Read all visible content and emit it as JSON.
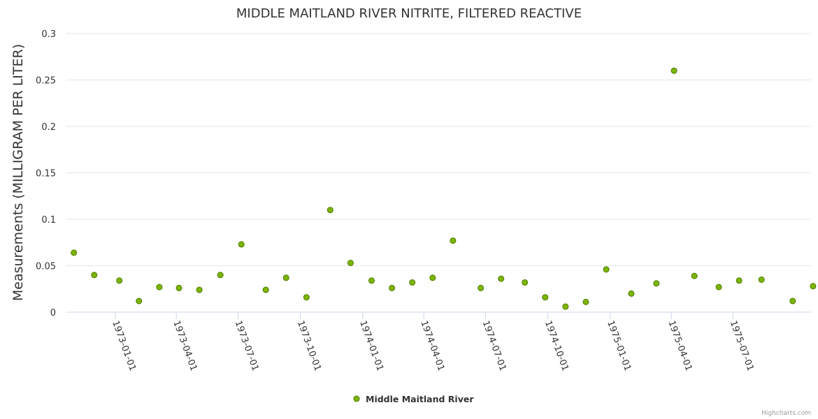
{
  "chart_data": {
    "type": "scatter",
    "title": "MIDDLE MAITLAND RIVER NITRITE, FILTERED REACTIVE",
    "ylabel": "Measurements (MILLIGRAM PER LITER)",
    "xlabel": "",
    "ylim": [
      0,
      0.3
    ],
    "yticks": [
      "0",
      "0.05",
      "0.1",
      "0.15",
      "0.2",
      "0.25",
      "0.3"
    ],
    "xticks": [
      "1973-01-01",
      "1973-04-01",
      "1973-07-01",
      "1973-10-01",
      "1974-01-01",
      "1974-04-01",
      "1974-07-01",
      "1974-10-01",
      "1975-01-01",
      "1975-04-01",
      "1975-07-01"
    ],
    "xlim": [
      "1972-10-21",
      "1975-10-24"
    ],
    "grid": "horizontal",
    "legend_position": "bottom-center",
    "series": [
      {
        "name": "Middle Maitland River",
        "color": "#7cb500",
        "points": [
          {
            "x": "1972-11-01",
            "y": 0.064
          },
          {
            "x": "1972-12-01",
            "y": 0.04
          },
          {
            "x": "1973-01-07",
            "y": 0.034
          },
          {
            "x": "1973-02-05",
            "y": 0.012
          },
          {
            "x": "1973-03-07",
            "y": 0.027
          },
          {
            "x": "1973-04-05",
            "y": 0.026
          },
          {
            "x": "1973-05-05",
            "y": 0.024
          },
          {
            "x": "1973-06-05",
            "y": 0.04
          },
          {
            "x": "1973-07-06",
            "y": 0.073
          },
          {
            "x": "1973-08-11",
            "y": 0.024
          },
          {
            "x": "1973-09-10",
            "y": 0.037
          },
          {
            "x": "1973-10-10",
            "y": 0.016
          },
          {
            "x": "1973-11-14",
            "y": 0.11
          },
          {
            "x": "1973-12-14",
            "y": 0.053
          },
          {
            "x": "1974-01-14",
            "y": 0.034
          },
          {
            "x": "1974-02-13",
            "y": 0.026
          },
          {
            "x": "1974-03-15",
            "y": 0.032
          },
          {
            "x": "1974-04-14",
            "y": 0.037
          },
          {
            "x": "1974-05-14",
            "y": 0.077
          },
          {
            "x": "1974-06-24",
            "y": 0.026
          },
          {
            "x": "1974-07-24",
            "y": 0.036
          },
          {
            "x": "1974-08-28",
            "y": 0.032
          },
          {
            "x": "1974-09-27",
            "y": 0.016
          },
          {
            "x": "1974-10-27",
            "y": 0.006
          },
          {
            "x": "1974-11-26",
            "y": 0.011
          },
          {
            "x": "1974-12-26",
            "y": 0.046
          },
          {
            "x": "1975-02-01",
            "y": 0.02
          },
          {
            "x": "1975-03-10",
            "y": 0.031
          },
          {
            "x": "1975-04-05",
            "y": 0.26
          },
          {
            "x": "1975-05-05",
            "y": 0.039
          },
          {
            "x": "1975-06-10",
            "y": 0.027
          },
          {
            "x": "1975-07-10",
            "y": 0.034
          },
          {
            "x": "1975-08-12",
            "y": 0.035
          },
          {
            "x": "1975-09-27",
            "y": 0.012
          },
          {
            "x": "1975-10-27",
            "y": 0.028
          }
        ]
      }
    ]
  },
  "credits": "Highcharts.com"
}
